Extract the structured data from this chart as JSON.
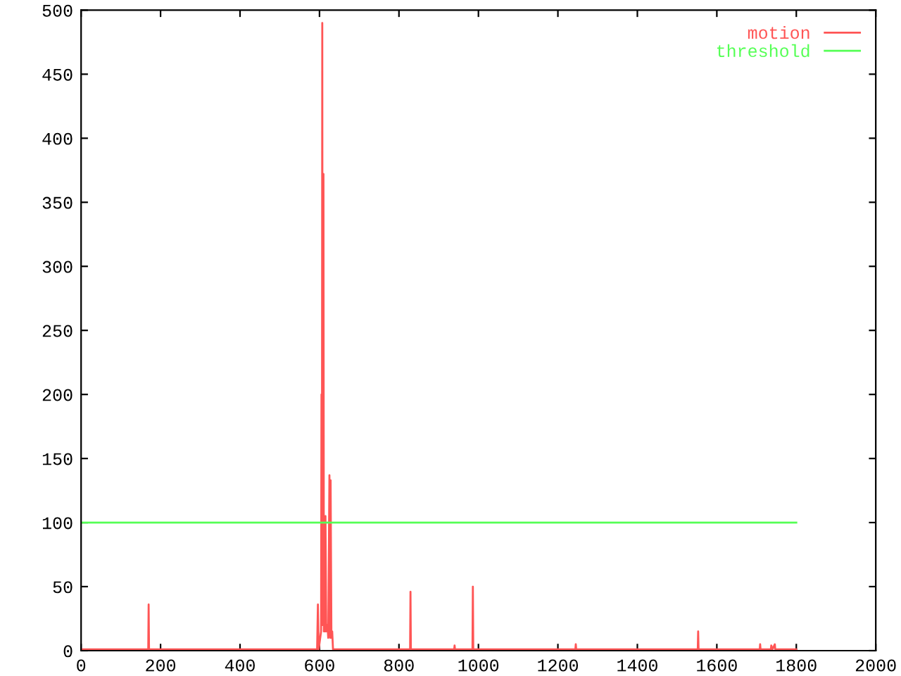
{
  "chart_data": {
    "type": "line",
    "series": [
      {
        "name": "motion",
        "color": "#ff5555",
        "x": [
          0,
          169,
          170,
          171,
          594,
          596,
          598,
          604,
          605,
          606,
          607,
          608,
          610,
          611,
          612,
          614,
          615,
          617,
          620,
          622,
          625,
          627,
          628,
          630,
          632,
          634,
          828,
          829,
          830,
          939,
          940,
          941,
          985,
          986,
          987,
          1244,
          1245,
          1246,
          1552,
          1553,
          1554,
          1708,
          1709,
          1710,
          1736,
          1737,
          1740,
          1746,
          1747,
          1800
        ],
        "values": [
          1,
          1,
          36,
          1,
          1,
          36,
          1,
          15,
          200,
          20,
          490,
          20,
          372,
          15,
          80,
          15,
          105,
          15,
          20,
          10,
          137,
          10,
          133,
          10,
          15,
          1,
          1,
          46,
          1,
          1,
          4,
          1,
          1,
          50,
          1,
          1,
          5,
          1,
          1,
          15,
          1,
          1,
          5,
          1,
          1,
          4,
          1,
          5,
          1,
          1
        ]
      },
      {
        "name": "threshold",
        "color": "#55ff55",
        "x": [
          0,
          1800
        ],
        "values": [
          100,
          100
        ]
      }
    ],
    "xlim": [
      0,
      2000
    ],
    "xticks": [
      0,
      200,
      400,
      600,
      800,
      1000,
      1200,
      1400,
      1600,
      1800,
      2000
    ],
    "ylim": [
      0,
      500
    ],
    "yticks": [
      0,
      50,
      100,
      150,
      200,
      250,
      300,
      350,
      400,
      450,
      500
    ],
    "grid": false,
    "legend": "top right",
    "marker": "none",
    "line_style": "solid"
  }
}
